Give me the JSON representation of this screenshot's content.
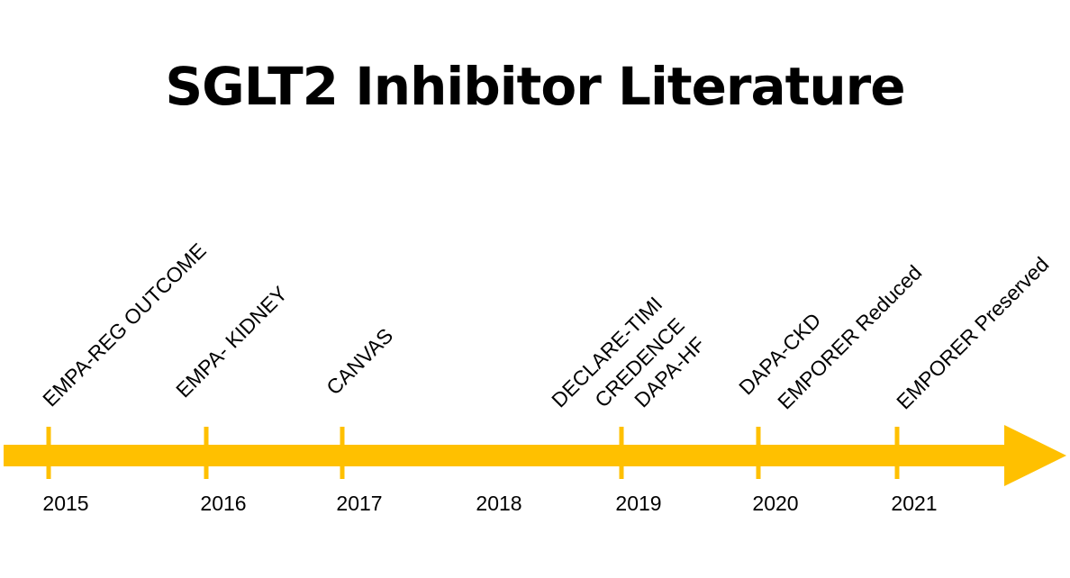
{
  "title": "SGLT2 Inhibitor Literature",
  "colors": {
    "arrow": "#FFC000",
    "text": "#000000",
    "background": "#FFFFFF"
  },
  "years": [
    "2015",
    "2016",
    "2017",
    "2018",
    "2019",
    "2020",
    "2021"
  ],
  "events": [
    {
      "year": "2015",
      "label": "EMPA-REG OUTCOME"
    },
    {
      "year": "2016",
      "label": "EMPA- KIDNEY"
    },
    {
      "year": "2017",
      "label": "CANVAS"
    },
    {
      "year": "2019",
      "label": "DECLARE-TIMI"
    },
    {
      "year": "2019",
      "label": "CREDENCE"
    },
    {
      "year": "2019",
      "label": "DAPA-HF"
    },
    {
      "year": "2020",
      "label": "DAPA-CKD"
    },
    {
      "year": "2020",
      "label": "EMPORER Reduced"
    },
    {
      "year": "2021",
      "label": "EMPORER Preserved"
    }
  ],
  "tick_years": [
    "2015",
    "2016",
    "2017",
    "2019",
    "2020",
    "2021"
  ]
}
